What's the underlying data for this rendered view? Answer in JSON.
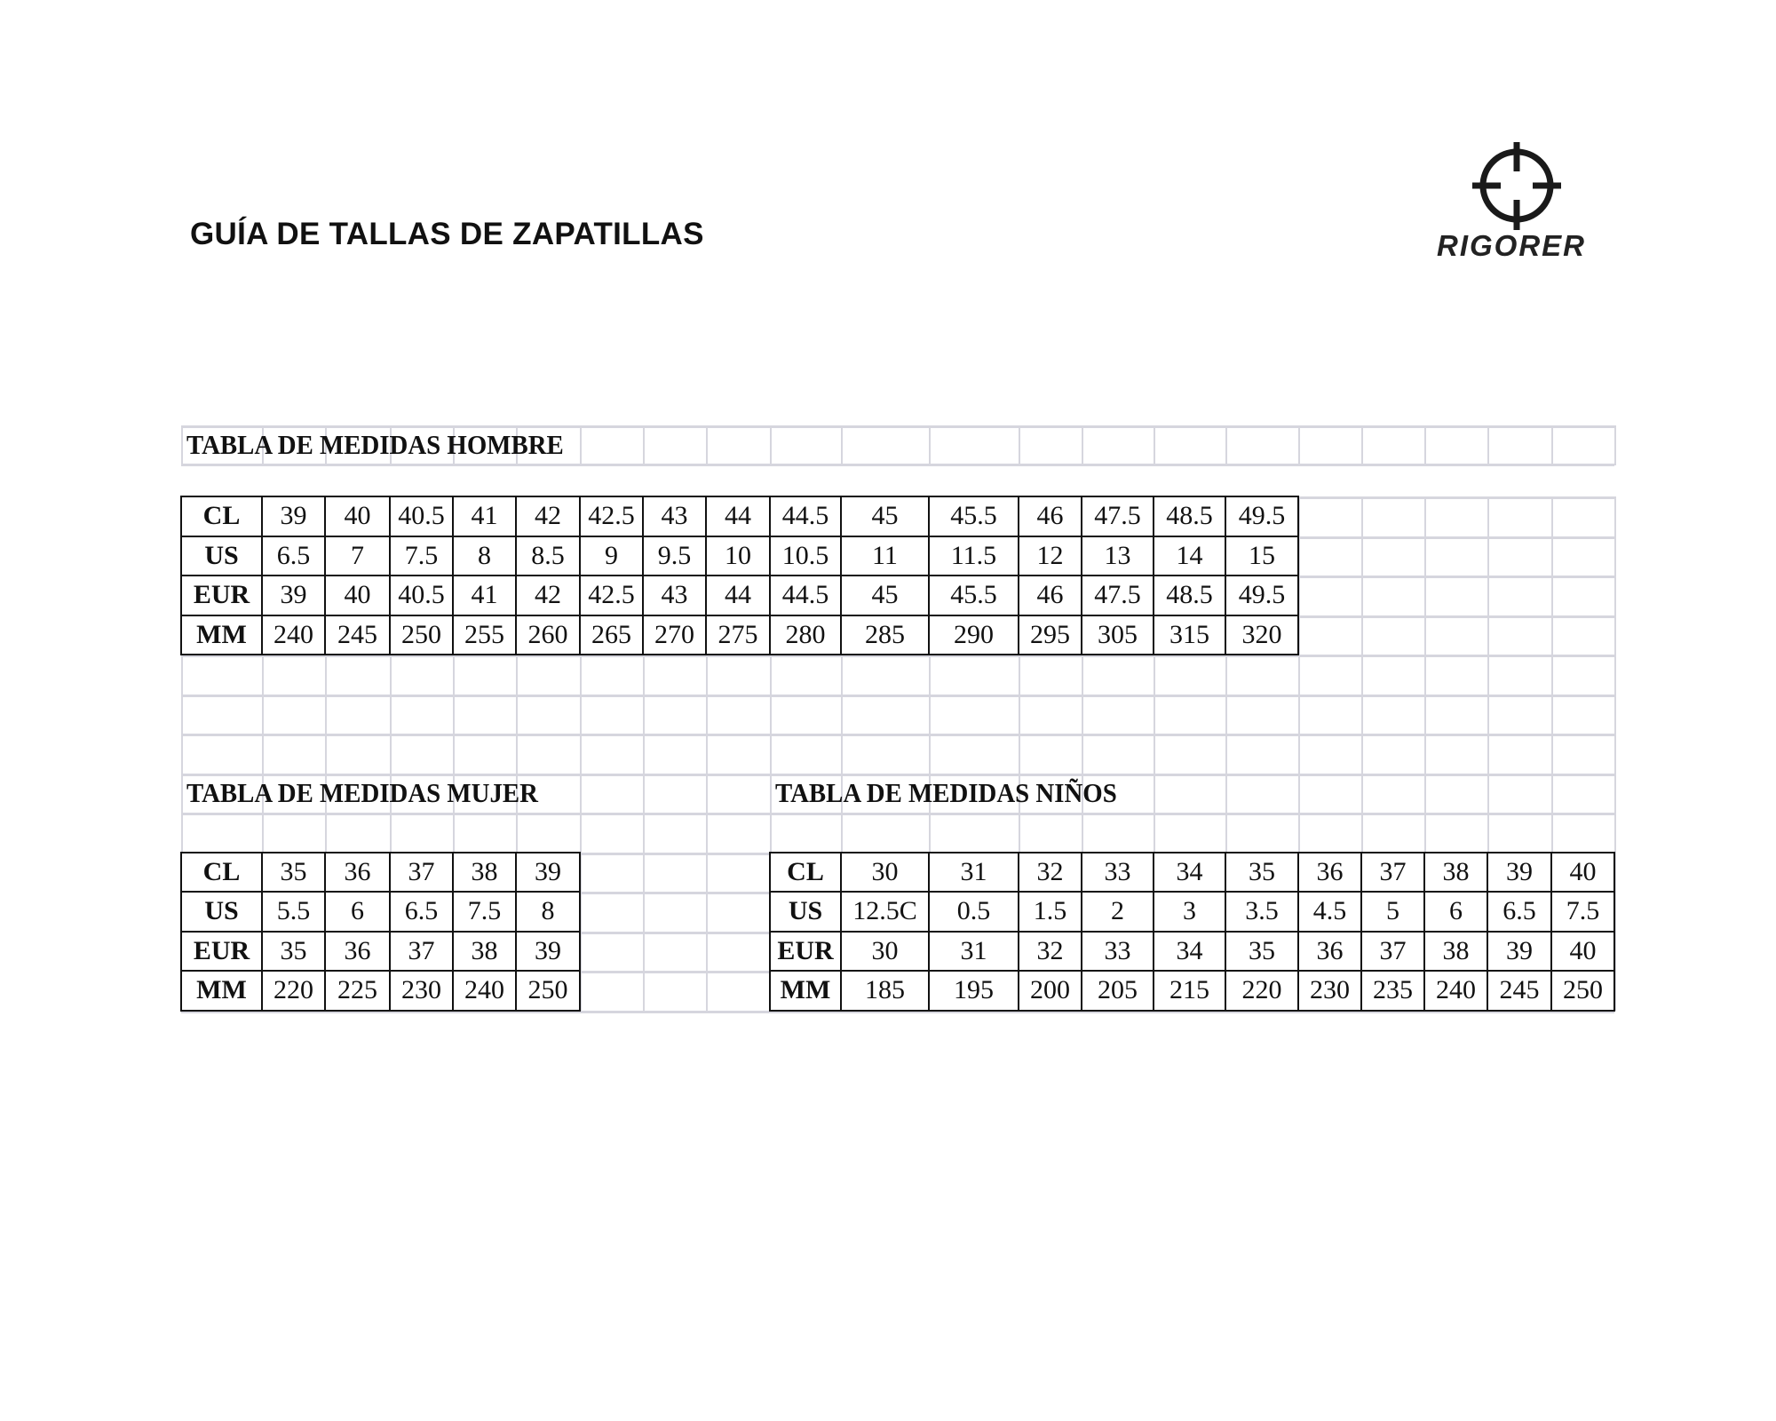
{
  "page": {
    "heading": "GUÍA DE TALLAS DE ZAPATILLAS"
  },
  "logo": {
    "icon": "crosshair-icon",
    "text": "RIGORER"
  },
  "tables": {
    "hombre": {
      "title": "TABLA DE MEDIDAS HOMBRE",
      "rows": [
        {
          "label": "CL",
          "values": [
            "39",
            "40",
            "40.5",
            "41",
            "42",
            "42.5",
            "43",
            "44",
            "44.5",
            "45",
            "45.5",
            "46",
            "47.5",
            "48.5",
            "49.5"
          ]
        },
        {
          "label": "US",
          "values": [
            "6.5",
            "7",
            "7.5",
            "8",
            "8.5",
            "9",
            "9.5",
            "10",
            "10.5",
            "11",
            "11.5",
            "12",
            "13",
            "14",
            "15"
          ]
        },
        {
          "label": "EUR",
          "values": [
            "39",
            "40",
            "40.5",
            "41",
            "42",
            "42.5",
            "43",
            "44",
            "44.5",
            "45",
            "45.5",
            "46",
            "47.5",
            "48.5",
            "49.5"
          ]
        },
        {
          "label": "MM",
          "values": [
            "240",
            "245",
            "250",
            "255",
            "260",
            "265",
            "270",
            "275",
            "280",
            "285",
            "290",
            "295",
            "305",
            "315",
            "320"
          ]
        }
      ]
    },
    "mujer": {
      "title": "TABLA DE MEDIDAS MUJER",
      "rows": [
        {
          "label": "CL",
          "values": [
            "35",
            "36",
            "37",
            "38",
            "39"
          ]
        },
        {
          "label": "US",
          "values": [
            "5.5",
            "6",
            "6.5",
            "7.5",
            "8"
          ]
        },
        {
          "label": "EUR",
          "values": [
            "35",
            "36",
            "37",
            "38",
            "39"
          ]
        },
        {
          "label": "MM",
          "values": [
            "220",
            "225",
            "230",
            "240",
            "250"
          ]
        }
      ]
    },
    "ninos": {
      "title": "TABLA DE MEDIDAS NIÑOS",
      "rows": [
        {
          "label": "CL",
          "values": [
            "30",
            "31",
            "32",
            "33",
            "34",
            "35",
            "36",
            "37",
            "38",
            "39",
            "40"
          ]
        },
        {
          "label": "US",
          "values": [
            "12.5C",
            "0.5",
            "1.5",
            "2",
            "3",
            "3.5",
            "4.5",
            "5",
            "6",
            "6.5",
            "7.5"
          ]
        },
        {
          "label": "EUR",
          "values": [
            "30",
            "31",
            "32",
            "33",
            "34",
            "35",
            "36",
            "37",
            "38",
            "39",
            "40"
          ]
        },
        {
          "label": "MM",
          "values": [
            "185",
            "195",
            "200",
            "205",
            "215",
            "220",
            "230",
            "235",
            "240",
            "245",
            "250"
          ]
        }
      ]
    }
  }
}
